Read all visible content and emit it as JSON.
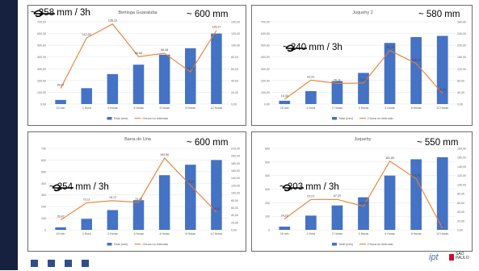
{
  "slide": {
    "colors": {
      "bar": "#4472c4",
      "line": "#ed7d31",
      "leftbar": "#16213f",
      "logo_red": "#c8102e",
      "logo_blue": "#4a6fa5"
    },
    "footer": {
      "logo_ipt": "ipt",
      "logo_sp": "SÃO PAULO"
    }
  },
  "chart_data": [
    {
      "type": "bar",
      "title": "Bertioga Guaratuba",
      "categories": [
        "15 min",
        "1 Hora",
        "2 Horas",
        "3 Horas",
        "4 Horas",
        "8 Horas",
        "12 Horas"
      ],
      "series": [
        {
          "name": "Total (mm)",
          "type": "bar",
          "axis": "left",
          "values": [
            35,
            135,
            255,
            335,
            420,
            475,
            600
          ]
        },
        {
          "name": "Chuva no intervalo",
          "type": "line",
          "axis": "right",
          "values": [
            26.67,
            112.53,
            136.23,
            80.68,
            86.38,
            54.7,
            125.27
          ],
          "labels": [
            "26,67",
            "112,53",
            "136,23",
            "80,68",
            "86,38",
            "54,70",
            "125,27"
          ]
        }
      ],
      "ylim_left": [
        0,
        700
      ],
      "ylim_right": [
        0,
        140
      ],
      "yticks_left": [
        "0,00",
        "100,00",
        "200,00",
        "300,00",
        "400,00",
        "500,00",
        "600,00",
        "700,00"
      ],
      "yticks_right": [
        "0,00",
        "20,00",
        "40,00",
        "60,00",
        "80,00",
        "100,00",
        "120,00",
        "140,00"
      ],
      "annotations": {
        "rain_3h": "~ 358 mm / 3h",
        "total": "~ 600 mm"
      }
    },
    {
      "type": "bar",
      "title": "Juquehy 2",
      "categories": [
        "15 min",
        "1 Hora",
        "2 Horas",
        "3 Horas",
        "4 Horas",
        "8 Horas",
        "12 Horas"
      ],
      "series": [
        {
          "name": "Total (mm)",
          "type": "bar",
          "axis": "left",
          "values": [
            28,
            110,
            195,
            265,
            520,
            570,
            580
          ]
        },
        {
          "name": "Chuva no intervalo",
          "type": "line",
          "axis": "right",
          "values": [
            16.3,
            81.51,
            70.11,
            71.61,
            182.34,
            138.16,
            36.78
          ],
          "labels": [
            "16,30",
            "81,51",
            "70,11",
            "71,61",
            "182,34",
            "138,16",
            "36,78"
          ]
        }
      ],
      "ylim_left": [
        0,
        700
      ],
      "ylim_right": [
        0,
        280
      ],
      "yticks_left": [
        "0,00",
        "100,00",
        "200,00",
        "300,00",
        "400,00",
        "500,00",
        "600,00",
        "700,00"
      ],
      "yticks_right": [
        "0,00",
        "40,00",
        "80,00",
        "120,00",
        "160,00",
        "200,00",
        "240,00",
        "280,00"
      ],
      "annotations": {
        "rain_3h": "~ 240 mm / 3h",
        "total": "~ 580 mm"
      }
    },
    {
      "type": "bar",
      "title": "Barra do Una",
      "categories": [
        "15 min",
        "1 Hora",
        "2 Horas",
        "3 Horas",
        "4 Horas",
        "8 Horas",
        "12 Horas"
      ],
      "series": [
        {
          "name": "Total (mm)",
          "type": "bar",
          "axis": "left",
          "values": [
            22,
            95,
            170,
            255,
            470,
            560,
            600
          ]
        },
        {
          "name": "Chuva no intervalo",
          "type": "line",
          "axis": "right",
          "values": [
            26.87,
            73.11,
            78.72,
            74.19,
            193.96,
            120.57,
            48.0
          ],
          "labels": [
            "26,87",
            "73,11",
            "78,72",
            "74,19",
            "193,96",
            "120,57",
            "48,00"
          ]
        }
      ],
      "ylim_left": [
        0,
        700
      ],
      "ylim_right": [
        0,
        220
      ],
      "yticks_left": [
        "0",
        "100",
        "200",
        "300",
        "400",
        "500",
        "600",
        "700"
      ],
      "yticks_right": [
        "0,00",
        "20,00",
        "40,00",
        "60,00",
        "80,00",
        "100,00",
        "120,00",
        "140,00",
        "160,00",
        "180,00",
        "200,00",
        "220,00"
      ],
      "annotations": {
        "rain_3h": "~ 254 mm / 3h",
        "total": "~ 600 mm"
      }
    },
    {
      "type": "bar",
      "title": "Juquehy",
      "categories": [
        "15 min",
        "1 Hora",
        "2 Horas",
        "3 Horas",
        "4 Horas",
        "8 Horas",
        "12 Horas"
      ],
      "series": [
        {
          "name": "Total (mm)",
          "type": "bar",
          "axis": "left",
          "values": [
            24,
            105,
            180,
            240,
            400,
            520,
            535
          ]
        },
        {
          "name": "Chuva no intervalo",
          "type": "line",
          "axis": "right",
          "values": [
            24.22,
            67.07,
            67.29,
            52.08,
            151.89,
            112.95,
            4.0
          ],
          "labels": [
            "24,22",
            "67,07",
            "67,29",
            "52,08",
            "151,89",
            "112,95",
            "4"
          ]
        }
      ],
      "ylim_left": [
        0,
        600
      ],
      "ylim_right": [
        0,
        180
      ],
      "yticks_left": [
        "0",
        "100",
        "200",
        "300",
        "400",
        "500",
        "600"
      ],
      "yticks_right": [
        "0,00",
        "20,00",
        "40,00",
        "60,00",
        "80,00",
        "100,00",
        "120,00",
        "140,00",
        "160,00",
        "180,00"
      ],
      "annotations": {
        "rain_3h": "~ 203 mm / 3h",
        "total": "~ 550 mm"
      }
    }
  ]
}
